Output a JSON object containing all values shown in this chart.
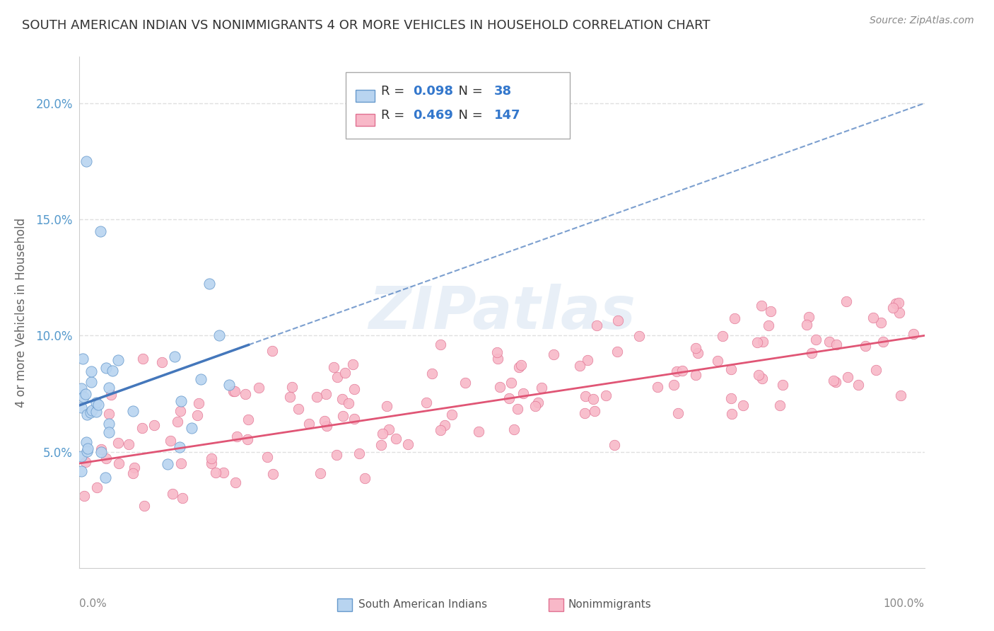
{
  "title": "SOUTH AMERICAN INDIAN VS NONIMMIGRANTS 4 OR MORE VEHICLES IN HOUSEHOLD CORRELATION CHART",
  "source_text": "Source: ZipAtlas.com",
  "ylabel": "4 or more Vehicles in Household",
  "legend": [
    {
      "label": "South American Indians",
      "R": 0.098,
      "N": 38,
      "dot_color": "#b8d4f0",
      "dot_edge": "#6699cc",
      "line_color": "#4477bb"
    },
    {
      "label": "Nonimmigrants",
      "R": 0.469,
      "N": 147,
      "dot_color": "#f8b8c8",
      "dot_edge": "#e07090",
      "line_color": "#e05575"
    }
  ],
  "watermark": "ZIPatlas",
  "blue_line_intercept": 7.0,
  "blue_line_slope": 0.13,
  "pink_line_intercept": 4.5,
  "pink_line_slope": 0.055,
  "blue_data_xmax": 20,
  "xlim": [
    0,
    100
  ],
  "ylim": [
    0,
    22
  ],
  "ytick_vals": [
    5,
    10,
    15,
    20
  ],
  "ytick_labels": [
    "5.0%",
    "10.0%",
    "15.0%",
    "20.0%"
  ],
  "background_color": "#ffffff",
  "grid_color": "#e0e0e0",
  "title_color": "#333333",
  "axis_color": "#cccccc",
  "tick_color": "#5599cc",
  "seed_blue": 77,
  "seed_pink": 42
}
